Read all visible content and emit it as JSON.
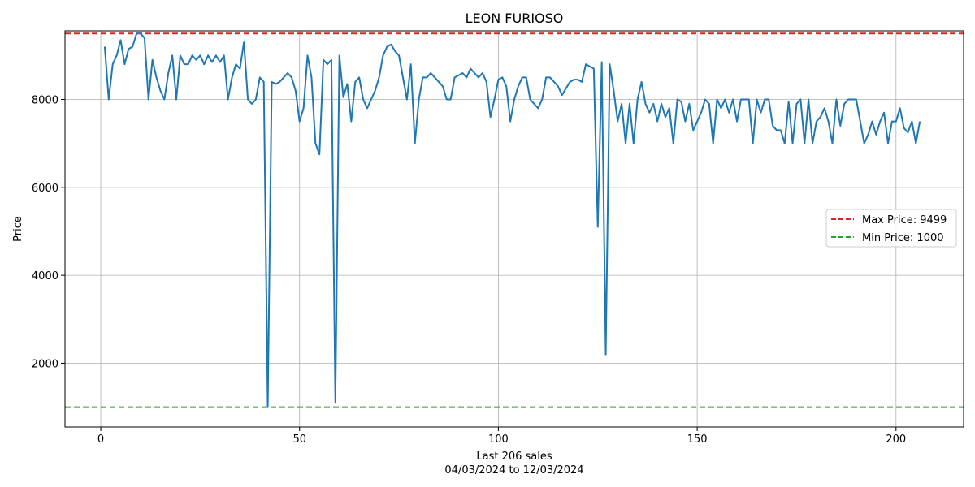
{
  "chart_data": {
    "type": "line",
    "title": "LEON FURIOSO",
    "xlabel": "Last 206 sales",
    "xlabel_sub": "04/03/2024 to 12/03/2024",
    "ylabel": "Price",
    "xlim": [
      -9,
      217
    ],
    "ylim": [
      550,
      9560
    ],
    "xticks": [
      0,
      50,
      100,
      150,
      200
    ],
    "yticks": [
      2000,
      4000,
      6000,
      8000
    ],
    "grid": true,
    "legend_position": "right",
    "colors": {
      "series": "#1f77b4",
      "max": "#d62728",
      "min": "#2ca02c"
    },
    "reference_lines": [
      {
        "name": "Max Price: 9499",
        "y": 9499,
        "color": "#d62728",
        "style": "dashed"
      },
      {
        "name": "Min Price: 1000",
        "y": 1000,
        "color": "#2ca02c",
        "style": "dashed"
      }
    ],
    "series": [
      {
        "values": [
          9200,
          8000,
          8800,
          9000,
          9350,
          8800,
          9150,
          9200,
          9499,
          9499,
          9400,
          8000,
          8900,
          8500,
          8200,
          8000,
          8600,
          9000,
          8000,
          9000,
          8800,
          8800,
          9000,
          8900,
          9000,
          8800,
          9000,
          8850,
          9000,
          8850,
          9000,
          8000,
          8500,
          8800,
          8700,
          9300,
          8000,
          7900,
          8000,
          8500,
          8400,
          1000,
          8400,
          8350,
          8400,
          8500,
          8600,
          8500,
          8200,
          7500,
          7800,
          9000,
          8500,
          7000,
          6750,
          8900,
          8800,
          8900,
          1100,
          9000,
          8050,
          8350,
          7500,
          8400,
          8500,
          8000,
          7800,
          8000,
          8200,
          8500,
          9000,
          9200,
          9250,
          9100,
          9000,
          8500,
          8000,
          8800,
          7000,
          8000,
          8500,
          8500,
          8600,
          8500,
          8400,
          8300,
          8000,
          8000,
          8500,
          8550,
          8600,
          8500,
          8700,
          8600,
          8500,
          8600,
          8400,
          7600,
          8000,
          8450,
          8500,
          8300,
          7500,
          8000,
          8300,
          8500,
          8500,
          8000,
          7900,
          7800,
          8000,
          8500,
          8500,
          8400,
          8300,
          8100,
          8250,
          8400,
          8450,
          8450,
          8400,
          8800,
          8750,
          8700,
          5100,
          8850,
          2200,
          8800,
          8200,
          7500,
          7900,
          7000,
          7900,
          7000,
          8000,
          8400,
          7900,
          7700,
          7900,
          7500,
          7900,
          7600,
          7800,
          7000,
          8000,
          7950,
          7500,
          7900,
          7300,
          7500,
          7700,
          8000,
          7900,
          7000,
          8000,
          7800,
          8000,
          7700,
          8000,
          7500,
          8000,
          8000,
          8000,
          7000,
          8000,
          7700,
          8000,
          8000,
          7400,
          7300,
          7300,
          7000,
          7950,
          7000,
          7900,
          8000,
          7000,
          8000,
          7000,
          7500,
          7600,
          7800,
          7500,
          7000,
          8000,
          7400,
          7900,
          8000,
          8000,
          8000,
          7500,
          7000,
          7200,
          7500,
          7200,
          7500,
          7700,
          7000,
          7500,
          7500,
          7800,
          7350,
          7250,
          7500,
          7000,
          7500
        ]
      }
    ]
  }
}
